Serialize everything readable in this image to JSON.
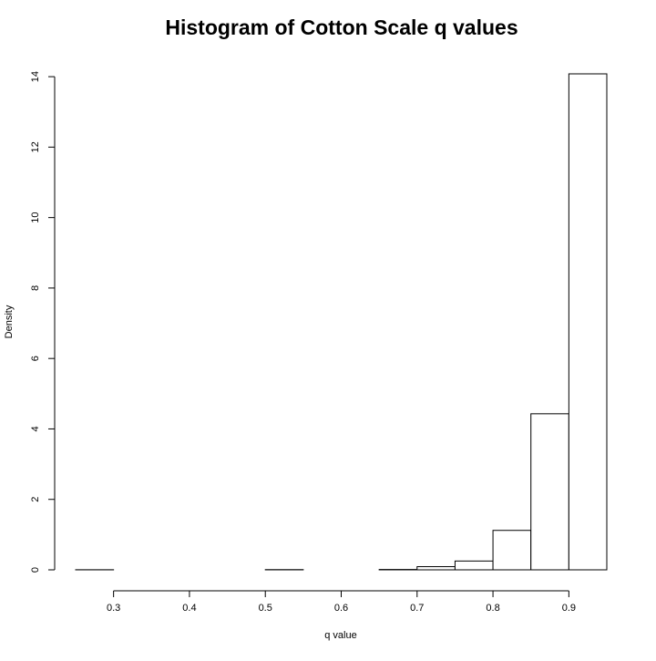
{
  "chart_data": {
    "type": "bar",
    "title": "Histogram of Cotton Scale q values",
    "xlabel": "q value",
    "ylabel": "Density",
    "bins": [
      {
        "start": 0.25,
        "end": 0.3,
        "density": 0.003
      },
      {
        "start": 0.3,
        "end": 0.35,
        "density": 0.0
      },
      {
        "start": 0.35,
        "end": 0.4,
        "density": 0.0
      },
      {
        "start": 0.4,
        "end": 0.45,
        "density": 0.0
      },
      {
        "start": 0.45,
        "end": 0.5,
        "density": 0.0
      },
      {
        "start": 0.5,
        "end": 0.55,
        "density": 0.006
      },
      {
        "start": 0.55,
        "end": 0.6,
        "density": 0.0
      },
      {
        "start": 0.6,
        "end": 0.65,
        "density": 0.0
      },
      {
        "start": 0.65,
        "end": 0.7,
        "density": 0.01
      },
      {
        "start": 0.7,
        "end": 0.75,
        "density": 0.09
      },
      {
        "start": 0.75,
        "end": 0.8,
        "density": 0.25
      },
      {
        "start": 0.8,
        "end": 0.85,
        "density": 1.12
      },
      {
        "start": 0.85,
        "end": 0.9,
        "density": 4.43
      },
      {
        "start": 0.9,
        "end": 0.95,
        "density": 14.08
      }
    ],
    "xticks": [
      0.3,
      0.4,
      0.5,
      0.6,
      0.7,
      0.8,
      0.9
    ],
    "xtick_labels": [
      "0.3",
      "0.4",
      "0.5",
      "0.6",
      "0.7",
      "0.8",
      "0.9"
    ],
    "yticks": [
      0,
      2,
      4,
      6,
      8,
      10,
      12,
      14
    ],
    "ytick_labels": [
      "0",
      "2",
      "4",
      "6",
      "8",
      "10",
      "12",
      "14"
    ],
    "xlim": [
      0.25,
      0.95
    ],
    "ylim": [
      0,
      14.08
    ],
    "grid": false,
    "legend": "none",
    "bar_fill": "#ffffff",
    "bar_stroke": "#000000"
  }
}
